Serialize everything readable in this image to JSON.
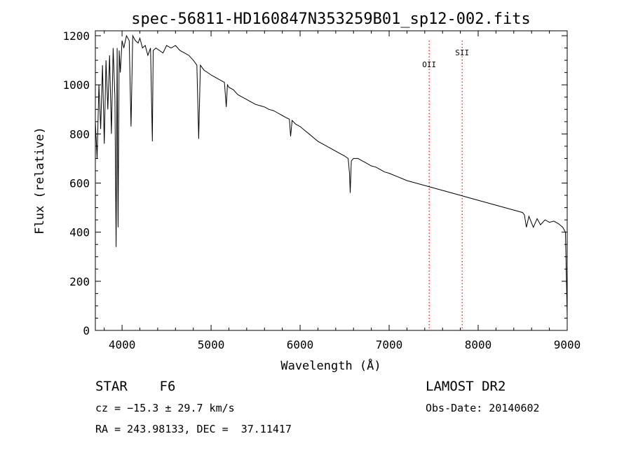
{
  "title": "spec-56811-HD160847N353259B01_sp12-002.fits",
  "chart_data": {
    "type": "line",
    "title": "spec-56811-HD160847N353259B01_sp12-002.fits",
    "xlabel": "Wavelength (Å)",
    "ylabel": "Flux (relative)",
    "xlim": [
      3700,
      9000
    ],
    "ylim": [
      0,
      1220
    ],
    "xticks": [
      4000,
      5000,
      6000,
      7000,
      8000,
      9000
    ],
    "yticks": [
      0,
      200,
      400,
      600,
      800,
      1000,
      1200
    ],
    "grid": false,
    "line_color": "#000000",
    "series": [
      {
        "x": [
          3700,
          3720,
          3740,
          3760,
          3780,
          3800,
          3820,
          3840,
          3860,
          3880,
          3900,
          3920,
          3933,
          3945,
          3955,
          3968,
          3980,
          4000,
          4020,
          4050,
          4080,
          4101,
          4120,
          4150,
          4180,
          4200,
          4230,
          4260,
          4290,
          4320,
          4340,
          4350,
          4380,
          4420,
          4460,
          4500,
          4550,
          4600,
          4650,
          4700,
          4750,
          4800,
          4840,
          4861,
          4880,
          4920,
          4960,
          5000,
          5050,
          5100,
          5150,
          5170,
          5184,
          5200,
          5250,
          5300,
          5350,
          5400,
          5450,
          5500,
          5550,
          5600,
          5650,
          5700,
          5750,
          5800,
          5850,
          5880,
          5893,
          5910,
          5950,
          6000,
          6050,
          6100,
          6150,
          6200,
          6250,
          6300,
          6350,
          6400,
          6450,
          6500,
          6540,
          6555,
          6563,
          6575,
          6600,
          6650,
          6700,
          6750,
          6800,
          6850,
          6900,
          6950,
          7000,
          7100,
          7200,
          7300,
          7400,
          7500,
          7600,
          7700,
          7800,
          7900,
          8000,
          8100,
          8200,
          8300,
          8400,
          8498,
          8520,
          8542,
          8570,
          8620,
          8662,
          8700,
          8750,
          8800,
          8850,
          8900,
          8950,
          8980,
          9000
        ],
        "y": [
          850,
          700,
          1000,
          820,
          1080,
          760,
          1100,
          900,
          1120,
          800,
          1150,
          950,
          340,
          1150,
          420,
          1140,
          1050,
          1180,
          1150,
          1200,
          1180,
          830,
          1200,
          1180,
          1170,
          1190,
          1150,
          1160,
          1120,
          1150,
          770,
          1140,
          1150,
          1140,
          1130,
          1160,
          1150,
          1160,
          1140,
          1130,
          1120,
          1100,
          1080,
          780,
          1080,
          1060,
          1050,
          1040,
          1030,
          1020,
          1010,
          910,
          1000,
          990,
          980,
          960,
          950,
          940,
          930,
          920,
          915,
          910,
          900,
          895,
          885,
          875,
          865,
          860,
          790,
          855,
          840,
          830,
          815,
          800,
          785,
          770,
          760,
          750,
          740,
          730,
          720,
          710,
          700,
          640,
          560,
          690,
          700,
          700,
          690,
          680,
          670,
          665,
          655,
          645,
          640,
          625,
          610,
          600,
          590,
          580,
          570,
          560,
          550,
          540,
          530,
          520,
          510,
          500,
          490,
          480,
          470,
          420,
          465,
          420,
          455,
          430,
          450,
          440,
          445,
          435,
          420,
          400,
          60
        ],
        "name": ""
      }
    ],
    "markers": [
      {
        "label": "OII",
        "x": 7450
      },
      {
        "label": "SII",
        "x": 7820
      }
    ],
    "marker_color": "#ff0000"
  },
  "info": {
    "star_class": "STAR    F6",
    "survey": "LAMOST DR2",
    "cz": "cz = −15.3 ± 29.7 km/s",
    "obs_date": "Obs-Date: 20140602",
    "coords": "RA = 243.98133, DEC =  37.11417"
  }
}
